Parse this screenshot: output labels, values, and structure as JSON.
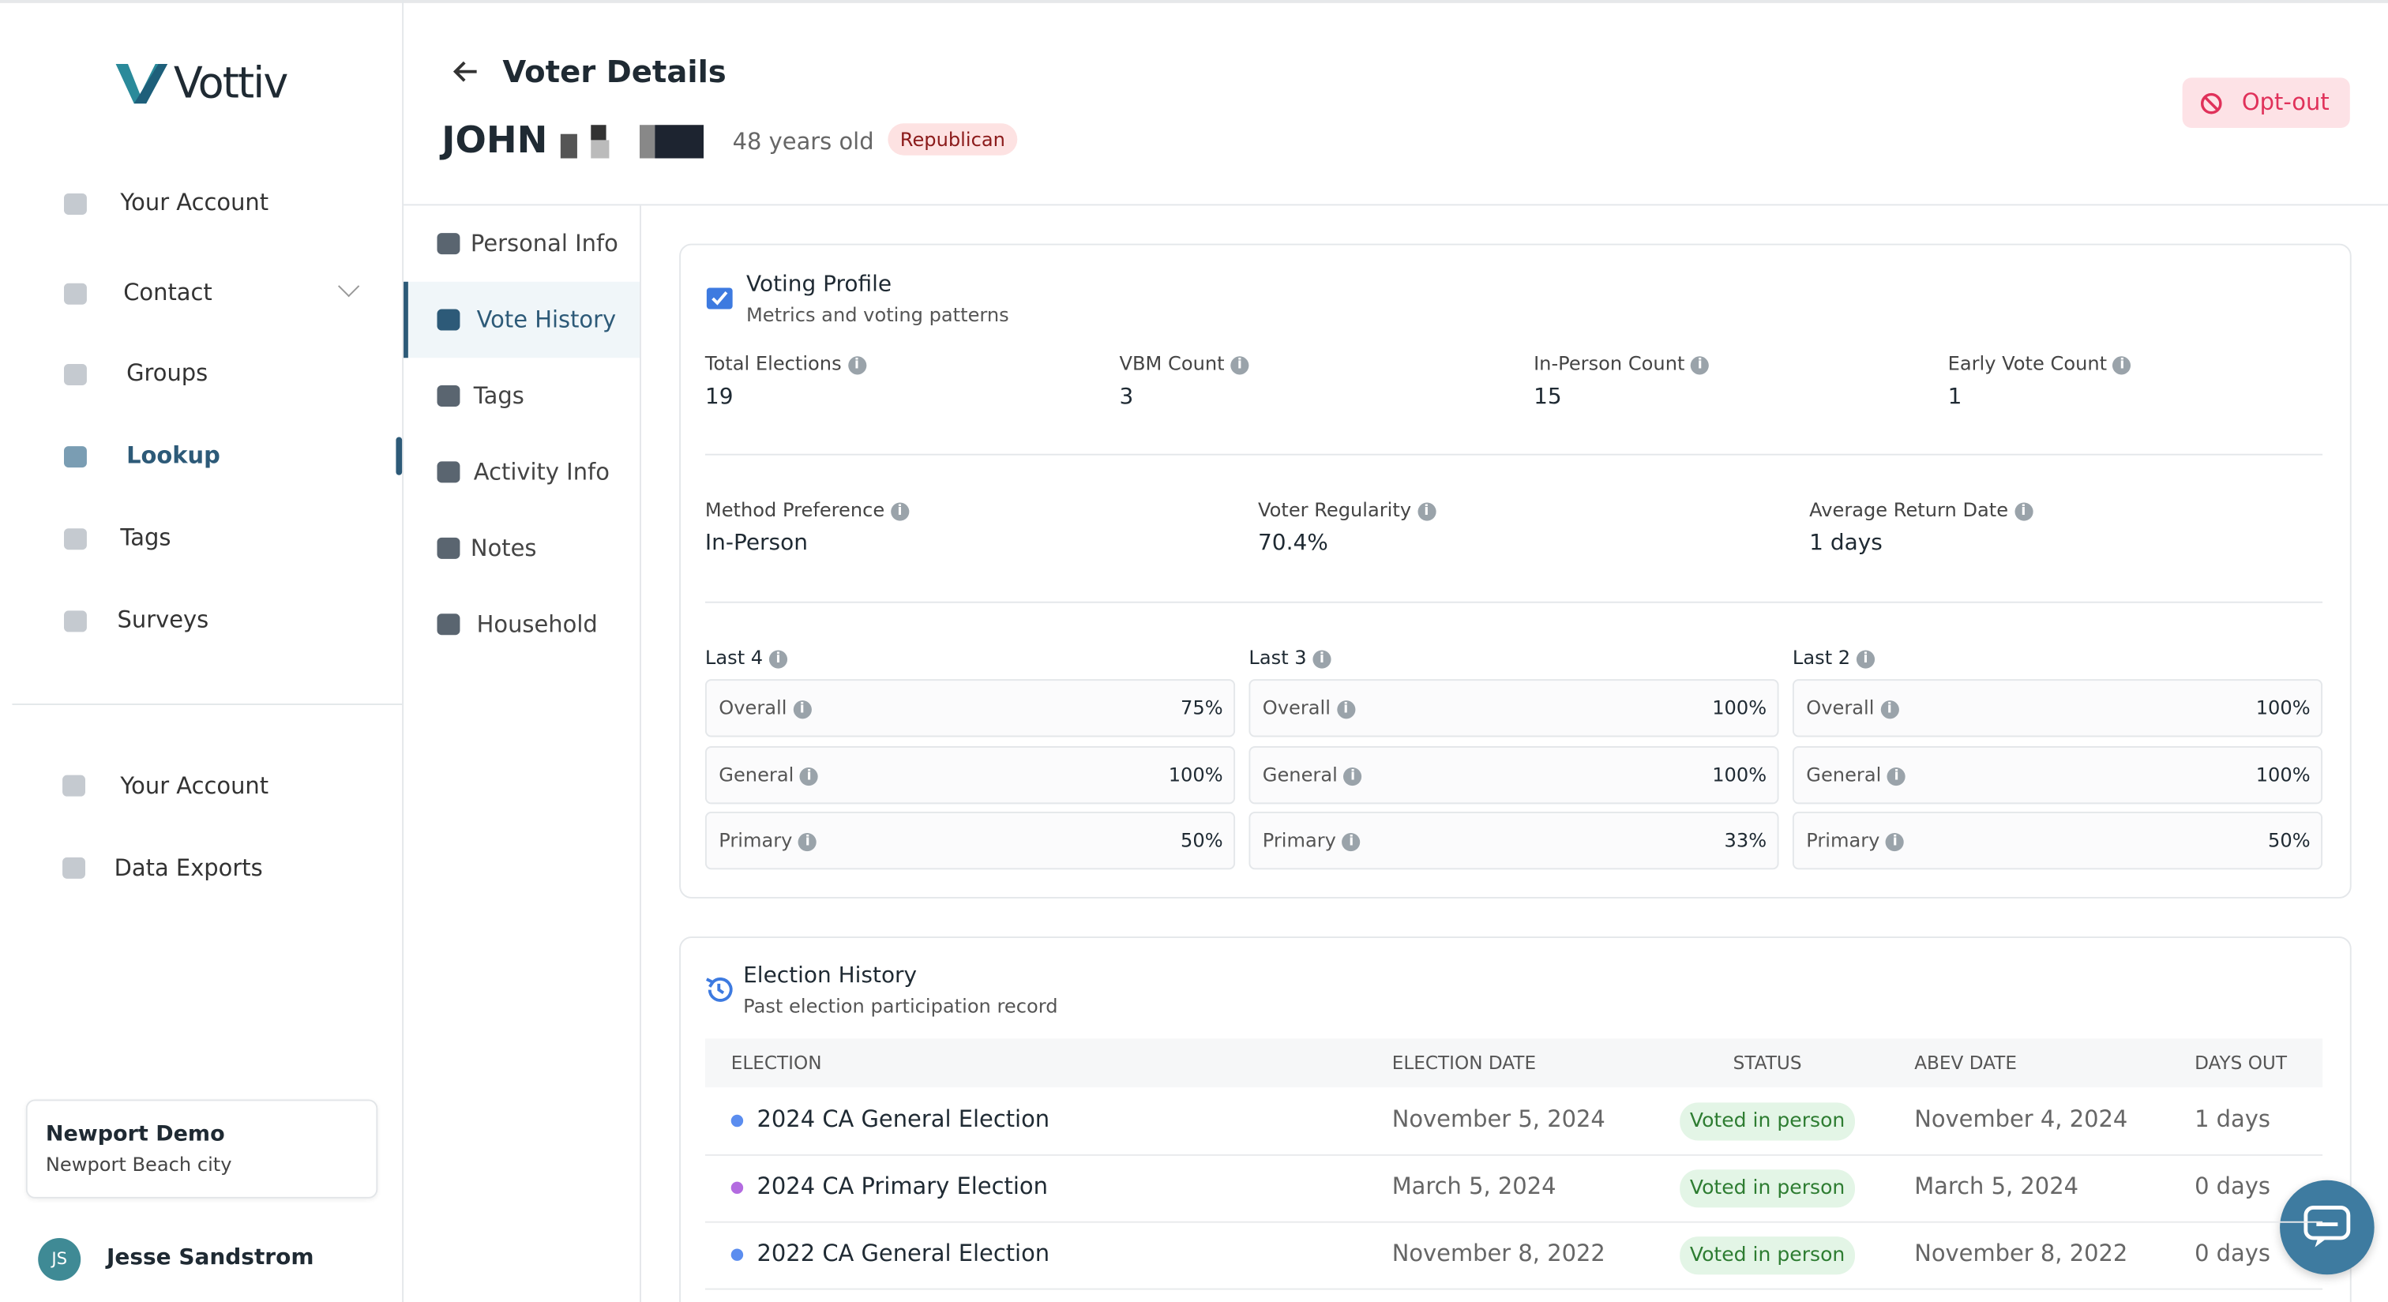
{
  "sidebar": {
    "brand": "Vottiv",
    "nav": [
      "Your Account",
      "Contact",
      "Groups",
      "Lookup",
      "Tags",
      "Surveys"
    ],
    "nav2": [
      "Your Account",
      "Data Exports"
    ],
    "org": {
      "name": "Newport Demo",
      "sub": "Newport Beach city"
    },
    "user": {
      "initials": "JS",
      "name": "Jesse Sandstrom"
    }
  },
  "header": {
    "title": "Voter Details",
    "name": "JOHN",
    "age": "48 years old",
    "party": "Republican",
    "opt_out": "Opt-out"
  },
  "tabs": [
    "Personal Info",
    "Vote History",
    "Tags",
    "Activity Info",
    "Notes",
    "Household"
  ],
  "profile": {
    "title": "Voting Profile",
    "subtitle": "Metrics and voting patterns",
    "stats": [
      {
        "label": "Total Elections",
        "value": "19"
      },
      {
        "label": "VBM Count",
        "value": "3"
      },
      {
        "label": "In-Person Count",
        "value": "15"
      },
      {
        "label": "Early Vote Count",
        "value": "1"
      }
    ],
    "stats2": [
      {
        "label": "Method Preference",
        "value": "In-Person"
      },
      {
        "label": "Voter Regularity",
        "value": "70.4%"
      },
      {
        "label": "Average Return Date",
        "value": "1 days"
      }
    ],
    "groups": [
      {
        "title": "Last 4",
        "rows": [
          {
            "label": "Overall",
            "value": "75%"
          },
          {
            "label": "General",
            "value": "100%"
          },
          {
            "label": "Primary",
            "value": "50%"
          }
        ]
      },
      {
        "title": "Last 3",
        "rows": [
          {
            "label": "Overall",
            "value": "100%"
          },
          {
            "label": "General",
            "value": "100%"
          },
          {
            "label": "Primary",
            "value": "33%"
          }
        ]
      },
      {
        "title": "Last 2",
        "rows": [
          {
            "label": "Overall",
            "value": "100%"
          },
          {
            "label": "General",
            "value": "100%"
          },
          {
            "label": "Primary",
            "value": "50%"
          }
        ]
      }
    ]
  },
  "history": {
    "title": "Election History",
    "subtitle": "Past election participation record",
    "columns": [
      "ELECTION",
      "ELECTION DATE",
      "STATUS",
      "ABEV DATE",
      "DAYS OUT"
    ],
    "rows": [
      [
        "2024 CA General Election",
        "November 5, 2024",
        "Voted in person",
        "November 4, 2024",
        "1 days"
      ],
      [
        "2024 CA Primary Election",
        "March 5, 2024",
        "Voted in person",
        "March 5, 2024",
        "0 days"
      ],
      [
        "2022 CA General Election",
        "November 8, 2022",
        "Voted in person",
        "November 8, 2022",
        "0 days"
      ]
    ]
  }
}
